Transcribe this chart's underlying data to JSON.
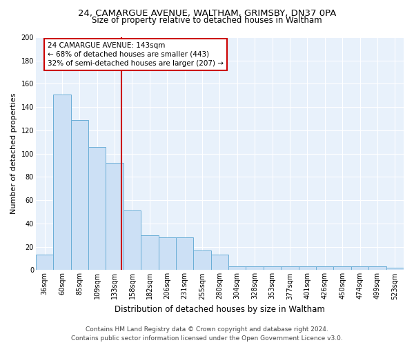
{
  "title1": "24, CAMARGUE AVENUE, WALTHAM, GRIMSBY, DN37 0PA",
  "title2": "Size of property relative to detached houses in Waltham",
  "xlabel": "Distribution of detached houses by size in Waltham",
  "ylabel": "Number of detached properties",
  "bar_labels": [
    "36sqm",
    "60sqm",
    "85sqm",
    "109sqm",
    "133sqm",
    "158sqm",
    "182sqm",
    "206sqm",
    "231sqm",
    "255sqm",
    "280sqm",
    "304sqm",
    "328sqm",
    "353sqm",
    "377sqm",
    "401sqm",
    "426sqm",
    "450sqm",
    "474sqm",
    "499sqm",
    "523sqm"
  ],
  "bar_values": [
    13,
    151,
    129,
    106,
    92,
    51,
    30,
    28,
    28,
    17,
    13,
    3,
    3,
    3,
    3,
    3,
    3,
    3,
    3,
    3,
    2
  ],
  "bar_color": "#cce0f5",
  "bar_edge_color": "#6aaed6",
  "vline_color": "#cc0000",
  "annotation_text": "24 CAMARGUE AVENUE: 143sqm\n← 68% of detached houses are smaller (443)\n32% of semi-detached houses are larger (207) →",
  "annotation_box_color": "#cc0000",
  "ylim": [
    0,
    200
  ],
  "yticks": [
    0,
    20,
    40,
    60,
    80,
    100,
    120,
    140,
    160,
    180,
    200
  ],
  "bg_color": "#e8f1fb",
  "grid_color": "#d0dce8",
  "footer1": "Contains HM Land Registry data © Crown copyright and database right 2024.",
  "footer2": "Contains public sector information licensed under the Open Government Licence v3.0.",
  "title1_fontsize": 9.5,
  "title2_fontsize": 8.5,
  "xlabel_fontsize": 8.5,
  "ylabel_fontsize": 8,
  "tick_fontsize": 7,
  "annot_fontsize": 7.5,
  "footer_fontsize": 6.5
}
